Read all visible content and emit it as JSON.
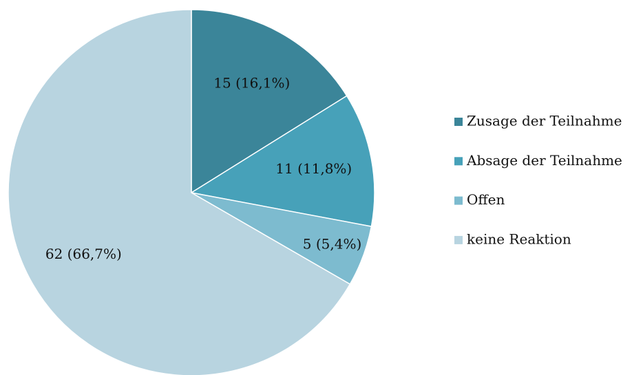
{
  "chart_data": {
    "type": "pie",
    "categories": [
      "Zusage der Teilnahme",
      "Absage der Teilnahme",
      "Offen",
      "keine Reaktion"
    ],
    "values": [
      15,
      11,
      5,
      62
    ],
    "value_labels": [
      "15 (16,1%)",
      "11 (11,8%)",
      "5 (5,4%)",
      "62 (66,7%)"
    ],
    "colors": [
      "#3b8599",
      "#47a1b9",
      "#7dbbcf",
      "#b8d4e0"
    ],
    "legend": "right"
  }
}
